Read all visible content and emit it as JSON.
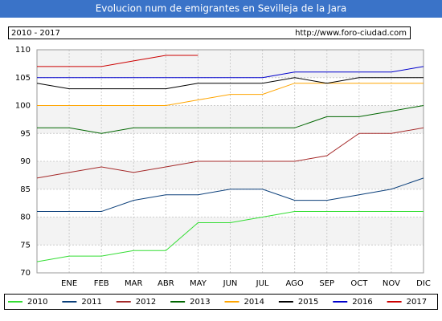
{
  "chart_data": {
    "type": "line",
    "title": "Evolucion num de emigrantes en Sevilleja de la Jara",
    "period": "2010 - 2017",
    "source": "http://www.foro-ciudad.com",
    "categories": [
      null,
      "ENE",
      "FEB",
      "MAR",
      "ABR",
      "MAY",
      "JUN",
      "JUL",
      "AGO",
      "SEP",
      "OCT",
      "NOV",
      "DIC"
    ],
    "ylim": [
      70,
      110
    ],
    "yticks": [
      70,
      75,
      80,
      85,
      90,
      95,
      100,
      105,
      110
    ],
    "grid": true,
    "legend": "bottom",
    "series": [
      {
        "name": "2010",
        "color": "#33dd33",
        "values": [
          72,
          73,
          73,
          74,
          74,
          79,
          79,
          80,
          81,
          81,
          81,
          81,
          81
        ]
      },
      {
        "name": "2011",
        "color": "#0b3f7a",
        "values": [
          81,
          81,
          81,
          83,
          84,
          84,
          85,
          85,
          83,
          83,
          84,
          85,
          87
        ]
      },
      {
        "name": "2012",
        "color": "#a52a2a",
        "values": [
          87,
          88,
          89,
          88,
          89,
          90,
          90,
          90,
          90,
          91,
          95,
          95,
          96
        ]
      },
      {
        "name": "2013",
        "color": "#006600",
        "values": [
          96,
          96,
          95,
          96,
          96,
          96,
          96,
          96,
          96,
          98,
          98,
          99,
          100
        ]
      },
      {
        "name": "2014",
        "color": "#ffa500",
        "values": [
          100,
          100,
          100,
          100,
          100,
          101,
          102,
          102,
          104,
          104,
          104,
          104,
          104
        ]
      },
      {
        "name": "2015",
        "color": "#000000",
        "values": [
          104,
          103,
          103,
          103,
          103,
          104,
          104,
          104,
          105,
          104,
          105,
          105,
          105
        ]
      },
      {
        "name": "2016",
        "color": "#0000cc",
        "values": [
          105,
          105,
          105,
          105,
          105,
          105,
          105,
          105,
          106,
          106,
          106,
          106,
          107
        ]
      },
      {
        "name": "2017",
        "color": "#cc0000",
        "values": [
          107,
          107,
          107,
          108,
          109,
          109,
          null,
          null,
          null,
          null,
          null,
          null,
          null
        ]
      }
    ]
  }
}
